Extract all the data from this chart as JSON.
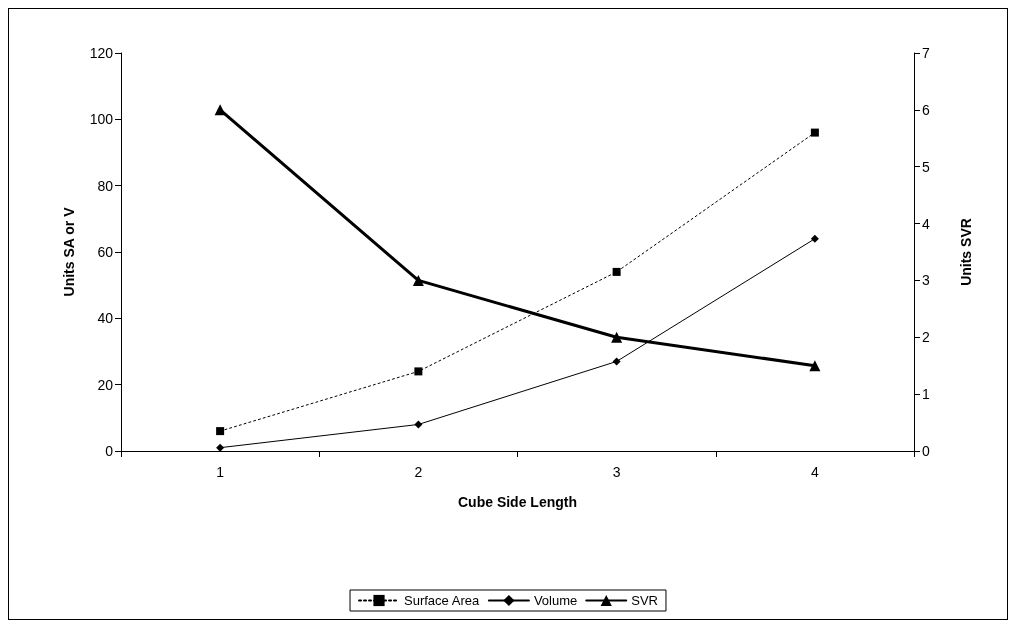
{
  "chart_data": {
    "type": "line",
    "xlabel": "Cube Side Length",
    "ylabel": "Units SA or V",
    "y2label": "Units SVR",
    "categories": [
      "1",
      "2",
      "3",
      "4"
    ],
    "series": [
      {
        "name": "Surface Area",
        "color": "#000000",
        "values": [
          6,
          24,
          54,
          96
        ],
        "marker": "square",
        "line_style": "dotted"
      },
      {
        "name": "Volume",
        "color": "#000000",
        "values": [
          1,
          8,
          27,
          64
        ],
        "marker": "diamond",
        "line_style": "solid"
      },
      {
        "name": "SVR",
        "color": "#000000",
        "values": [
          6,
          3,
          2,
          1.5
        ],
        "marker": "triangle",
        "line_style": "solid",
        "axis": "y2"
      }
    ],
    "ylim": [
      0,
      120
    ],
    "yticks": [
      0,
      20,
      40,
      60,
      80,
      100,
      120
    ],
    "y2lim": [
      0,
      7
    ],
    "y2ticks": [
      0,
      1,
      2,
      3,
      4,
      5,
      6,
      7
    ],
    "grid": false,
    "legend": "bottom"
  }
}
